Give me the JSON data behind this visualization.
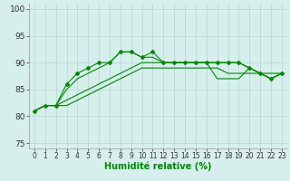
{
  "xlabel": "Humidité relative (%)",
  "x": [
    0,
    1,
    2,
    3,
    4,
    5,
    6,
    7,
    8,
    9,
    10,
    11,
    12,
    13,
    14,
    15,
    16,
    17,
    18,
    19,
    20,
    21,
    22,
    23
  ],
  "line1": [
    81,
    82,
    82,
    82,
    83,
    84,
    85,
    86,
    87,
    88,
    89,
    89,
    89,
    89,
    89,
    89,
    89,
    89,
    88,
    88,
    88,
    88,
    88,
    88
  ],
  "line2": [
    81,
    82,
    82,
    83,
    84,
    85,
    86,
    87,
    88,
    89,
    90,
    90,
    90,
    90,
    90,
    90,
    90,
    87,
    87,
    87,
    89,
    88,
    87,
    88
  ],
  "line3": [
    81,
    82,
    82,
    86,
    88,
    89,
    90,
    90,
    92,
    92,
    91,
    92,
    90,
    90,
    90,
    90,
    90,
    90,
    90,
    90,
    89,
    88,
    87,
    88
  ],
  "line4": [
    81,
    82,
    82,
    85,
    87,
    88,
    89,
    90,
    92,
    92,
    91,
    91,
    90,
    90,
    90,
    90,
    90,
    90,
    90,
    90,
    89,
    88,
    87,
    88
  ],
  "bg_color": "#d6efec",
  "grid_color": "#b0d8d0",
  "line_color": "#008800",
  "marker": "D",
  "marker_size": 2.0,
  "xlim": [
    -0.5,
    23.5
  ],
  "ylim": [
    74,
    101
  ],
  "yticks": [
    75,
    80,
    85,
    90,
    95,
    100
  ],
  "xticks": [
    0,
    1,
    2,
    3,
    4,
    5,
    6,
    7,
    8,
    9,
    10,
    11,
    12,
    13,
    14,
    15,
    16,
    17,
    18,
    19,
    20,
    21,
    22,
    23
  ],
  "xlabel_fontsize": 7,
  "tick_fontsize": 6.5
}
